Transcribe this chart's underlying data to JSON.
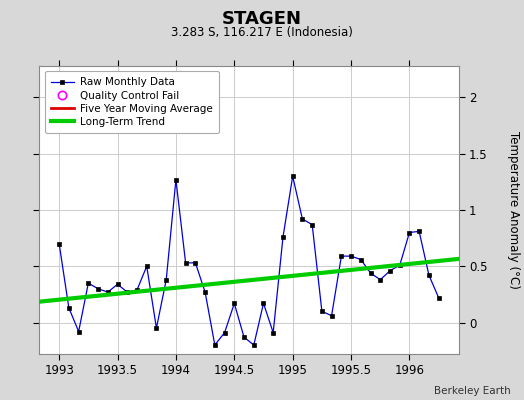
{
  "title": "STAGEN",
  "subtitle": "3.283 S, 116.217 E (Indonesia)",
  "credit": "Berkeley Earth",
  "ylabel": "Temperature Anomaly (°C)",
  "xlim": [
    1992.83,
    1996.42
  ],
  "ylim": [
    -0.28,
    2.28
  ],
  "yticks": [
    0,
    0.5,
    1.0,
    1.5,
    2.0
  ],
  "xticks": [
    1993,
    1993.5,
    1994,
    1994.5,
    1995,
    1995.5,
    1996
  ],
  "background_color": "#d8d8d8",
  "plot_bg_color": "#ffffff",
  "raw_x": [
    1993.0,
    1993.083,
    1993.167,
    1993.25,
    1993.333,
    1993.417,
    1993.5,
    1993.583,
    1993.667,
    1993.75,
    1993.833,
    1993.917,
    1994.0,
    1994.083,
    1994.167,
    1994.25,
    1994.333,
    1994.417,
    1994.5,
    1994.583,
    1994.667,
    1994.75,
    1994.833,
    1994.917,
    1995.0,
    1995.083,
    1995.167,
    1995.25,
    1995.333,
    1995.417,
    1995.5,
    1995.583,
    1995.667,
    1995.75,
    1995.833,
    1995.917,
    1996.0,
    1996.083,
    1996.167,
    1996.25
  ],
  "raw_y": [
    0.7,
    0.13,
    -0.08,
    0.35,
    0.3,
    0.27,
    0.34,
    0.27,
    0.29,
    0.5,
    -0.05,
    0.38,
    1.27,
    0.53,
    0.53,
    0.27,
    -0.2,
    -0.09,
    0.17,
    -0.13,
    -0.2,
    0.17,
    -0.09,
    0.76,
    1.3,
    0.92,
    0.87,
    0.1,
    0.06,
    0.59,
    0.59,
    0.56,
    0.44,
    0.38,
    0.46,
    0.51,
    0.8,
    0.81,
    0.42,
    0.22
  ],
  "trend_x": [
    1992.83,
    1996.42
  ],
  "trend_y": [
    0.185,
    0.565
  ],
  "line_color": "#0000dd",
  "marker_color": "#000000",
  "trend_color": "#00cc00",
  "qc_color": "#ff00ff",
  "moving_avg_color": "#dd0000",
  "grid_color": "#cccccc",
  "grid_linewidth": 0.7
}
